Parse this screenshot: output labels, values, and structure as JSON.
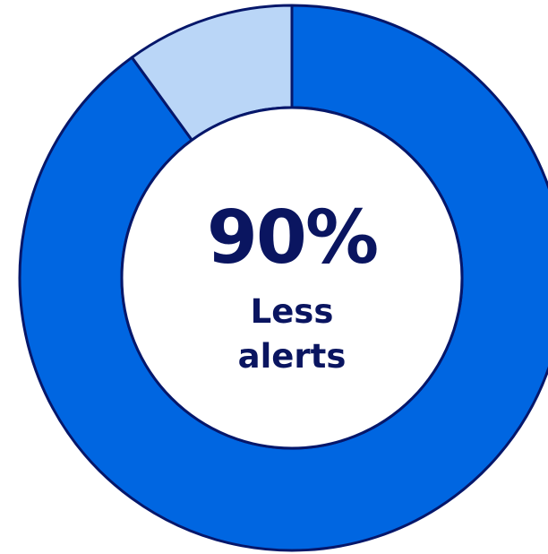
{
  "chart_data": {
    "type": "pie",
    "donut": true,
    "values": [
      90,
      10
    ],
    "center_value_text": "90%",
    "center_caption_lines": [
      "Less",
      "alerts"
    ]
  },
  "colors": {
    "primary_segment": "#0066E1",
    "remainder_segment": "#BAD6F7",
    "outline": "#06176A",
    "center_text": "#0A1560",
    "background": "#FFFFFF"
  }
}
